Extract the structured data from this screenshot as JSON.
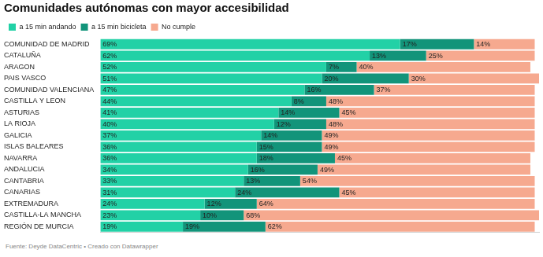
{
  "chart_data": {
    "type": "bar",
    "title": "Comunidades autónomas con mayor accesibilidad",
    "caption": "Fuente: Deyde DataCentric • Creado con Datawrapper",
    "orientation": "horizontal",
    "stacked": true,
    "data_labels": true,
    "tick_labels": "y",
    "grid": false,
    "legend": "top-left",
    "xlim": [
      0,
      101
    ],
    "categories": [
      "COMUNIDAD DE MADRID",
      "CATALUÑA",
      "ARAGON",
      "PAIS VASCO",
      "COMUNIDAD VALENCIANA",
      "CASTILLA Y LEON",
      "ASTURIAS",
      "LA RIOJA",
      "GALICIA",
      "ISLAS BALEARES",
      "NAVARRA",
      "ANDALUCIA",
      "CANTABRIA",
      "CANARIAS",
      "EXTREMADURA",
      "CASTILLA-LA MANCHA",
      "REGIÓN DE MURCIA"
    ],
    "series": [
      {
        "name": "a 15 min andando",
        "color": "#22d1a6",
        "values": [
          69,
          62,
          52,
          51,
          47,
          44,
          41,
          40,
          37,
          36,
          36,
          34,
          33,
          31,
          24,
          23,
          19
        ],
        "value_labels": [
          "69%",
          "62%",
          "52%",
          "51%",
          "47%",
          "44%",
          "41%",
          "40%",
          "37%",
          "36%",
          "36%",
          "34%",
          "33%",
          "31%",
          "24%",
          "23%",
          "19%"
        ]
      },
      {
        "name": "a 15 min bicicleta",
        "color": "#12947a",
        "values": [
          17,
          13,
          7,
          20,
          16,
          8,
          14,
          12,
          14,
          15,
          18,
          16,
          13,
          24,
          12,
          10,
          19
        ],
        "value_labels": [
          "17%",
          "13%",
          "7%",
          "20%",
          "16%",
          "8%",
          "14%",
          "12%",
          "14%",
          "15%",
          "18%",
          "16%",
          "13%",
          "24%",
          "12%",
          "10%",
          "19%"
        ]
      },
      {
        "name": "No cumple",
        "color": "#f6a98f",
        "values": [
          14,
          25,
          40,
          30,
          37,
          48,
          45,
          48,
          49,
          49,
          45,
          49,
          54,
          45,
          64,
          68,
          62
        ],
        "value_labels": [
          "14%",
          "25%",
          "40%",
          "30%",
          "37%",
          "48%",
          "45%",
          "48%",
          "49%",
          "49%",
          "45%",
          "49%",
          "54%",
          "45%",
          "64%",
          "68%",
          "62%"
        ]
      }
    ]
  }
}
